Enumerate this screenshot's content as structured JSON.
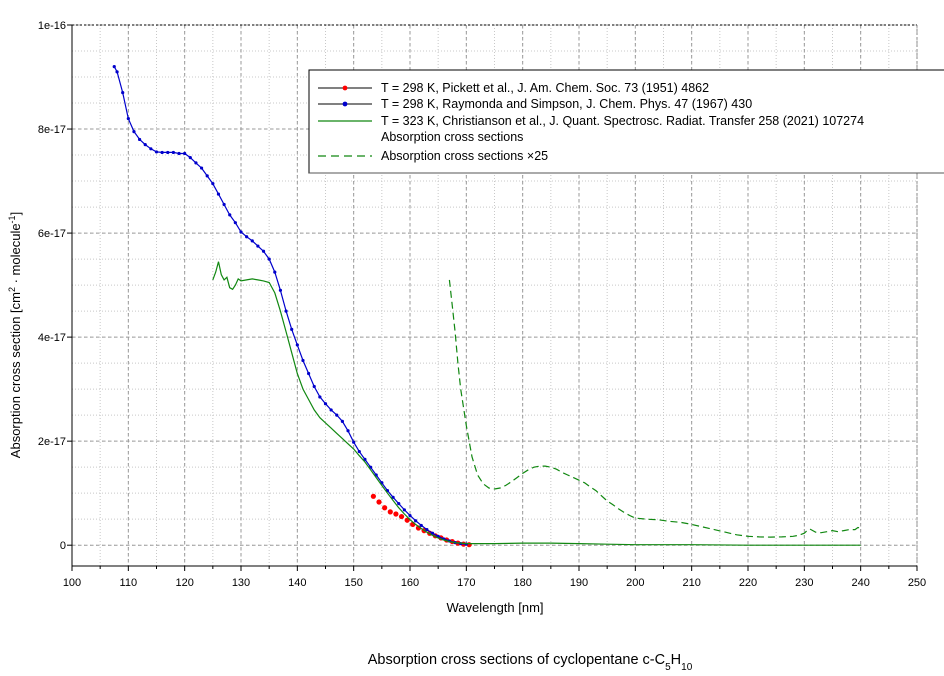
{
  "chart_data": {
    "type": "line",
    "xlabel": "Wavelength [nm]",
    "ylabel": {
      "main": "Absorption cross section [cm",
      "sup1": "2",
      "mid": " · molecule",
      "sup2": "-1",
      "end": "]"
    },
    "caption": {
      "prefix": "Absorption cross sections of cyclopentane c-C",
      "sub1": "5",
      "mid": "H",
      "sub2": "10"
    },
    "xlim": [
      100,
      250
    ],
    "ylim": [
      -4e-18,
      1e-16
    ],
    "x_ticks": [
      100,
      110,
      120,
      130,
      140,
      150,
      160,
      170,
      180,
      190,
      200,
      210,
      220,
      230,
      240,
      250
    ],
    "y_ticks": [
      {
        "value": 0,
        "label": "0"
      },
      {
        "value": 2e-17,
        "label": "2e-17"
      },
      {
        "value": 4e-17,
        "label": "4e-17"
      },
      {
        "value": 6e-17,
        "label": "6e-17"
      },
      {
        "value": 8e-17,
        "label": "8e-17"
      },
      {
        "value": 1e-16,
        "label": "1e-16"
      }
    ],
    "grid": true,
    "legend_position": "top-right",
    "series": [
      {
        "name": "T = 298 K, Pickett et al., J. Am. Chem. Soc. 73 (1951) 4862",
        "color": "#ff0000",
        "style": "markers",
        "x": [
          153.5,
          154.5,
          155.5,
          156.5,
          157.5,
          158.5,
          159.5,
          160.5,
          161.5,
          162.5,
          163.5,
          164.5,
          165.5,
          166.5,
          167.5,
          168.5,
          169.5,
          170.5
        ],
        "y": [
          9.4e-18,
          8.3e-18,
          7.2e-18,
          6.4e-18,
          6e-18,
          5.5e-18,
          4.8e-18,
          4e-18,
          3.3e-18,
          2.8e-18,
          2.3e-18,
          1.8e-18,
          1.4e-18,
          1e-18,
          7e-19,
          4e-19,
          2e-19,
          1e-19
        ]
      },
      {
        "name": "T = 298 K, Raymonda and Simpson, J. Chem. Phys. 47 (1967) 430",
        "color": "#0000cc",
        "style": "line-markers",
        "x": [
          107.5,
          108,
          109,
          110,
          111,
          112,
          113,
          114,
          115,
          116,
          117,
          118,
          119,
          120,
          121,
          122,
          123,
          124,
          125,
          126,
          127,
          128,
          129,
          130,
          131,
          132,
          133,
          134,
          135,
          136,
          137,
          138,
          139,
          140,
          141,
          142,
          143,
          144,
          145,
          146,
          147,
          148,
          149,
          150,
          151,
          152,
          153,
          154,
          155,
          156,
          157,
          158,
          159,
          160,
          161,
          162,
          163,
          164,
          165,
          166,
          167,
          168,
          169,
          170
        ],
        "y": [
          9.2e-17,
          9.1e-17,
          8.7e-17,
          8.2e-17,
          7.95e-17,
          7.8e-17,
          7.7e-17,
          7.62e-17,
          7.56e-17,
          7.55e-17,
          7.55e-17,
          7.55e-17,
          7.53e-17,
          7.53e-17,
          7.45e-17,
          7.35e-17,
          7.25e-17,
          7.1e-17,
          6.95e-17,
          6.75e-17,
          6.55e-17,
          6.35e-17,
          6.2e-17,
          6.02e-17,
          5.93e-17,
          5.85e-17,
          5.75e-17,
          5.65e-17,
          5.5e-17,
          5.25e-17,
          4.9e-17,
          4.5e-17,
          4.15e-17,
          3.85e-17,
          3.55e-17,
          3.3e-17,
          3.05e-17,
          2.85e-17,
          2.72e-17,
          2.6e-17,
          2.5e-17,
          2.38e-17,
          2.2e-17,
          1.98e-17,
          1.8e-17,
          1.65e-17,
          1.5e-17,
          1.35e-17,
          1.2e-17,
          1.05e-17,
          9.2e-18,
          8e-18,
          6.8e-18,
          5.7e-18,
          4.7e-18,
          3.8e-18,
          3e-18,
          2.3e-18,
          1.7e-18,
          1.2e-18,
          8e-19,
          5e-19,
          3e-19,
          2e-19
        ]
      },
      {
        "name": "T = 323 K, Christianson et al., J. Quant. Spectrosc. Radiat. Transfer 258 (2021) 107274",
        "color": "#118811",
        "style": "line",
        "x": [
          125,
          125.5,
          126,
          126.5,
          127,
          127.5,
          128,
          128.5,
          129,
          129.5,
          130,
          131,
          132,
          133,
          134,
          135,
          136,
          137,
          138,
          139,
          140,
          141,
          142,
          143,
          144,
          145,
          146,
          147,
          148,
          149,
          150,
          151,
          152,
          153,
          154,
          155,
          156,
          157,
          158,
          159,
          160,
          161,
          162,
          163,
          164,
          165,
          166,
          167,
          168,
          169,
          170,
          172,
          175,
          180,
          185,
          190,
          195,
          200,
          205,
          210,
          220,
          230,
          240
        ],
        "y": [
          5.1e-17,
          5.25e-17,
          5.45e-17,
          5.2e-17,
          5.1e-17,
          5.15e-17,
          4.95e-17,
          4.92e-17,
          5e-17,
          5.12e-17,
          5.08e-17,
          5.1e-17,
          5.12e-17,
          5.1e-17,
          5.08e-17,
          5.05e-17,
          4.85e-17,
          4.5e-17,
          4.1e-17,
          3.7e-17,
          3.3e-17,
          3e-17,
          2.8e-17,
          2.6e-17,
          2.45e-17,
          2.35e-17,
          2.25e-17,
          2.15e-17,
          2.05e-17,
          1.95e-17,
          1.85e-17,
          1.72e-17,
          1.6e-17,
          1.45e-17,
          1.3e-17,
          1.15e-17,
          1e-17,
          8.6e-18,
          7.2e-18,
          6e-18,
          4.9e-18,
          4e-18,
          3.2e-18,
          2.5e-18,
          1.9e-18,
          1.4e-18,
          1e-18,
          7e-19,
          5e-19,
          4e-19,
          3e-19,
          3e-19,
          3e-19,
          4e-19,
          4e-19,
          3e-19,
          2e-19,
          1e-19,
          1e-19,
          1e-19,
          0,
          0,
          0
        ]
      },
      {
        "name": "Absorption cross sections ×25",
        "color": "#118811",
        "style": "dashed",
        "x": [
          167,
          167.5,
          168,
          168.5,
          169,
          170,
          171,
          172,
          173,
          174,
          175,
          176,
          177,
          178,
          179,
          180,
          181,
          182,
          183,
          184,
          185,
          186,
          187,
          188,
          189,
          190,
          191,
          192,
          193,
          194,
          195,
          196,
          197,
          198,
          199,
          200,
          202,
          204,
          206,
          208,
          210,
          212,
          214,
          216,
          218,
          220,
          222,
          224,
          226,
          228,
          229,
          230,
          230.5,
          231,
          231.5,
          232,
          233,
          234,
          235,
          236,
          237,
          238,
          239,
          239.5,
          240
        ],
        "y": [
          5.1e-17,
          4.6e-17,
          4.1e-17,
          3.5e-17,
          3e-17,
          2.3e-17,
          1.7e-17,
          1.35e-17,
          1.18e-17,
          1.1e-17,
          1.08e-17,
          1.1e-17,
          1.15e-17,
          1.22e-17,
          1.3e-17,
          1.38e-17,
          1.45e-17,
          1.5e-17,
          1.52e-17,
          1.52e-17,
          1.5e-17,
          1.46e-17,
          1.4e-17,
          1.35e-17,
          1.3e-17,
          1.25e-17,
          1.2e-17,
          1.12e-17,
          1.05e-17,
          9.5e-18,
          8.5e-18,
          7.8e-18,
          7e-18,
          6.3e-18,
          5.7e-18,
          5.2e-18,
          5e-18,
          4.9e-18,
          4.6e-18,
          4.4e-18,
          4e-18,
          3.5e-18,
          3e-18,
          2.5e-18,
          2e-18,
          1.7e-18,
          1.6e-18,
          1.55e-18,
          1.6e-18,
          1.7e-18,
          1.9e-18,
          2.3e-18,
          2.8e-18,
          3.1e-18,
          2.8e-18,
          2.5e-18,
          2.4e-18,
          2.6e-18,
          2.8e-18,
          2.6e-18,
          2.8e-18,
          3e-18,
          3e-18,
          3.4e-18,
          3.3e-18
        ]
      }
    ]
  },
  "legend": {
    "entries": [
      {
        "label": "T = 298 K, Pickett et al., J. Am. Chem. Soc. 73 (1951) 4862",
        "color": "#ff0000",
        "style": "line-markers",
        "line_color": "#000000"
      },
      {
        "label": "T = 298 K, Raymonda and Simpson, J. Chem. Phys. 47 (1967) 430",
        "color": "#0000cc",
        "style": "line-markers",
        "line_color": "#000000"
      },
      {
        "label": "T = 323 K, Christianson et al., J. Quant. Spectrosc. Radiat. Transfer 258 (2021) 107274",
        "color": "#118811",
        "style": "line"
      },
      {
        "label": "Absorption cross sections",
        "color": "#118811",
        "style": "none"
      },
      {
        "label": "Absorption cross sections ×25",
        "color": "#118811",
        "style": "dashed"
      }
    ]
  }
}
